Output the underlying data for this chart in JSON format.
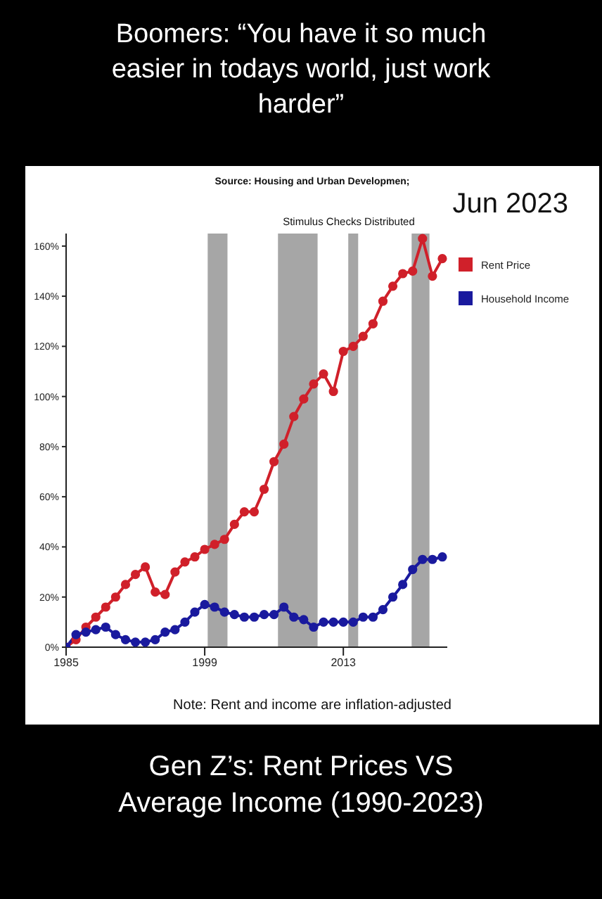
{
  "chart_data": {
    "type": "line",
    "title": "Boomers: “You have it so much easier in todays world, just work harder”",
    "x": [
      1985,
      1986,
      1987,
      1988,
      1989,
      1990,
      1991,
      1992,
      1993,
      1994,
      1995,
      1996,
      1997,
      1998,
      1999,
      2000,
      2001,
      2002,
      2003,
      2004,
      2005,
      2006,
      2007,
      2008,
      2009,
      2010,
      2011,
      2012,
      2013,
      2014,
      2015,
      2016,
      2017,
      2018,
      2019,
      2020,
      2021,
      2022,
      2023
    ],
    "series": [
      {
        "name": "Rent Price",
        "color": "#d0202a",
        "values": [
          0,
          3,
          8,
          12,
          16,
          20,
          25,
          29,
          32,
          22,
          21,
          30,
          34,
          36,
          39,
          41,
          43,
          49,
          54,
          54,
          63,
          74,
          81,
          92,
          99,
          105,
          109,
          102,
          118,
          120,
          124,
          129,
          138,
          144,
          149,
          150,
          163,
          148,
          155
        ]
      },
      {
        "name": "Household Income",
        "color": "#1a1a9e",
        "values": [
          0,
          5,
          6,
          7,
          8,
          5,
          3,
          2,
          2,
          3,
          6,
          7,
          10,
          14,
          17,
          16,
          14,
          13,
          12,
          12,
          13,
          13,
          16,
          12,
          11,
          8,
          10,
          10,
          10,
          10,
          12,
          12,
          15,
          20,
          25,
          31,
          35,
          35,
          36
        ]
      }
    ],
    "xlim": [
      1985,
      2023.5
    ],
    "xticks": [
      1985,
      1999,
      2013
    ],
    "ylim": [
      0,
      165
    ],
    "yticks": [
      {
        "value": 0,
        "label": "0%"
      },
      {
        "value": 20,
        "label": "20%"
      },
      {
        "value": 40,
        "label": "40%"
      },
      {
        "value": 60,
        "label": "60%"
      },
      {
        "value": 80,
        "label": "80%"
      },
      {
        "value": 100,
        "label": "100%"
      },
      {
        "value": 120,
        "label": "120%"
      },
      {
        "value": 140,
        "label": "140%"
      },
      {
        "value": 160,
        "label": "160%"
      }
    ],
    "bands": [
      {
        "axis": "x",
        "from": 1999.3,
        "to": 2001.3,
        "color": "#a6a6a6"
      },
      {
        "axis": "x",
        "from": 2006.4,
        "to": 2010.4,
        "color": "#a6a6a6"
      },
      {
        "axis": "x",
        "from": 2013.5,
        "to": 2014.5,
        "color": "#a6a6a6"
      },
      {
        "axis": "x",
        "from": 2019.9,
        "to": 2021.7,
        "color": "#a6a6a6"
      }
    ],
    "annotations": [
      "Source: Housing and Urban Developmen;",
      "Jun 2023",
      "Stimulus Checks Distributed",
      "Note: Rent and income are inflation-adjusted",
      "Gen Z’s: Rent Prices VS Average Income (1990-2023)"
    ],
    "marker": "circle",
    "legend": "right"
  }
}
